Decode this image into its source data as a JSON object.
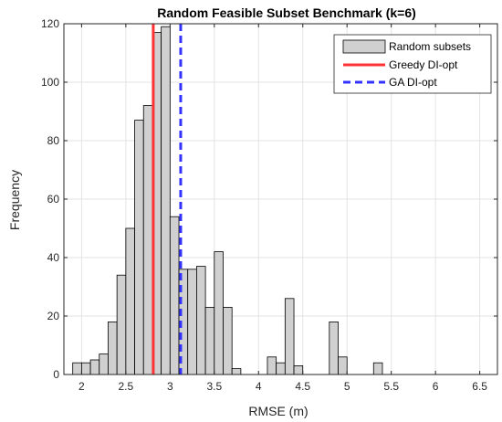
{
  "chart_data": {
    "type": "bar",
    "title": "Random Feasible Subset Benchmark (k=6)",
    "xlabel": "RMSE (m)",
    "ylabel": "Frequency",
    "xlim": [
      1.8,
      6.7
    ],
    "ylim": [
      0,
      120
    ],
    "xticks": [
      "2",
      "2.5",
      "3",
      "3.5",
      "4",
      "4.5",
      "5",
      "5.5",
      "6",
      "6.5"
    ],
    "yticks": [
      "0",
      "20",
      "40",
      "60",
      "80",
      "100",
      "120"
    ],
    "grid": true,
    "legend_position": "top-right",
    "bin_width": 0.1,
    "histogram": {
      "name": "Random subsets",
      "color": "#d0d0d0",
      "edge_color": "#000000",
      "bins": [
        {
          "x": 1.9,
          "count": 4
        },
        {
          "x": 2.0,
          "count": 4
        },
        {
          "x": 2.1,
          "count": 5
        },
        {
          "x": 2.2,
          "count": 7
        },
        {
          "x": 2.3,
          "count": 18
        },
        {
          "x": 2.4,
          "count": 34
        },
        {
          "x": 2.5,
          "count": 50
        },
        {
          "x": 2.6,
          "count": 87
        },
        {
          "x": 2.7,
          "count": 92
        },
        {
          "x": 2.8,
          "count": 117
        },
        {
          "x": 2.9,
          "count": 119
        },
        {
          "x": 3.0,
          "count": 54
        },
        {
          "x": 3.1,
          "count": 36
        },
        {
          "x": 3.2,
          "count": 36
        },
        {
          "x": 3.3,
          "count": 37
        },
        {
          "x": 3.4,
          "count": 23
        },
        {
          "x": 3.5,
          "count": 42
        },
        {
          "x": 3.6,
          "count": 23
        },
        {
          "x": 3.7,
          "count": 2
        },
        {
          "x": 4.1,
          "count": 6
        },
        {
          "x": 4.2,
          "count": 4
        },
        {
          "x": 4.3,
          "count": 26
        },
        {
          "x": 4.4,
          "count": 3
        },
        {
          "x": 4.8,
          "count": 18
        },
        {
          "x": 4.9,
          "count": 6
        },
        {
          "x": 5.3,
          "count": 4
        }
      ]
    },
    "reference_lines": [
      {
        "name": "Greedy DI-opt",
        "x": 2.81,
        "color": "#ff3333",
        "style": "solid"
      },
      {
        "name": "GA DI-opt",
        "x": 3.12,
        "color": "#3333ff",
        "style": "dashed"
      }
    ]
  }
}
